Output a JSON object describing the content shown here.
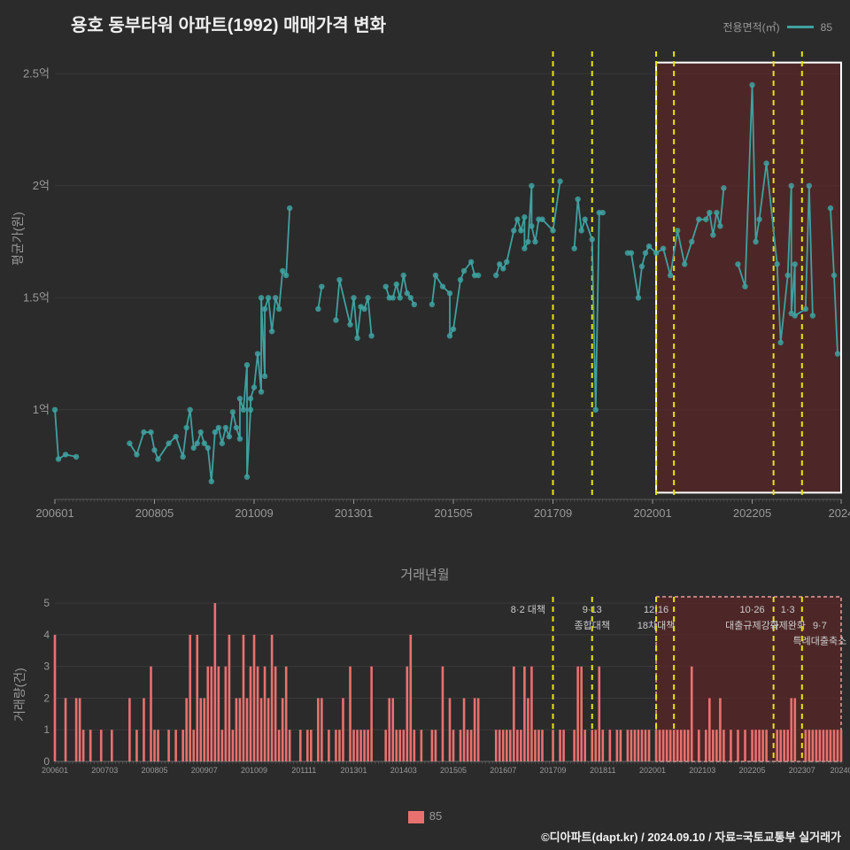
{
  "title": "용호 동부타워 아파트(1992) 매매가격 변화",
  "legend_top_label": "전용면적(㎡)",
  "legend_top_value": "85",
  "legend_bottom_value": "85",
  "footer_credit": "©디아파트(dapt.kr) / 2024.09.10 / 자료=국토교통부 실거래가",
  "x_axis_label": "거래년월",
  "y_axis_label_top": "평균가(원)",
  "y_axis_label_bottom": "거래량(건)",
  "colors": {
    "background": "#2b2b2b",
    "series_line": "#3fa1a0",
    "series_point": "#3fa1a0",
    "bar": "#e8716f",
    "highlight_fill": "#5c2626",
    "highlight_border": "#ffffff",
    "highlight_border_bottom": "#e8a0a0",
    "policy_line": "#e6e600",
    "grid": "#3a3a3a",
    "axis_text": "#999999",
    "title_text": "#eeeeee",
    "policy_text": "#cccccc"
  },
  "top_chart": {
    "type": "scatter-line",
    "x_range": [
      1,
      222
    ],
    "y_range": [
      0.6,
      2.6
    ],
    "y_ticks": [
      1.0,
      1.5,
      2.0,
      2.5
    ],
    "y_tick_labels": [
      "1억",
      "1.5억",
      "2억",
      "2.5억"
    ],
    "x_ticks": [
      1,
      29,
      57,
      85,
      113,
      141,
      169,
      197,
      222
    ],
    "x_tick_labels": [
      "200601",
      "200805",
      "201009",
      "201301",
      "201505",
      "201709",
      "202001",
      "202205",
      "2024"
    ],
    "highlight_region": {
      "x_start": 170,
      "x_end": 222,
      "y_start": 0.63,
      "y_end": 2.55
    },
    "policy_lines": [
      141,
      152,
      170,
      175,
      203,
      211
    ],
    "points": [
      [
        1,
        1.0
      ],
      [
        2,
        0.78
      ],
      [
        4,
        0.8
      ],
      [
        7,
        0.79
      ],
      [
        22,
        0.85
      ],
      [
        24,
        0.8
      ],
      [
        26,
        0.9
      ],
      [
        28,
        0.9
      ],
      [
        29,
        0.82
      ],
      [
        30,
        0.78
      ],
      [
        33,
        0.85
      ],
      [
        35,
        0.88
      ],
      [
        37,
        0.79
      ],
      [
        38,
        0.92
      ],
      [
        39,
        1.0
      ],
      [
        40,
        0.83
      ],
      [
        41,
        0.85
      ],
      [
        42,
        0.9
      ],
      [
        43,
        0.85
      ],
      [
        44,
        0.83
      ],
      [
        45,
        0.68
      ],
      [
        46,
        0.9
      ],
      [
        47,
        0.92
      ],
      [
        48,
        0.85
      ],
      [
        49,
        0.92
      ],
      [
        50,
        0.88
      ],
      [
        51,
        0.99
      ],
      [
        52,
        0.92
      ],
      [
        53,
        0.87
      ],
      [
        53,
        1.05
      ],
      [
        54,
        1.0
      ],
      [
        55,
        1.2
      ],
      [
        55,
        0.7
      ],
      [
        56,
        1.0
      ],
      [
        56,
        1.05
      ],
      [
        57,
        1.1
      ],
      [
        58,
        1.25
      ],
      [
        59,
        1.08
      ],
      [
        59,
        1.5
      ],
      [
        60,
        1.15
      ],
      [
        60,
        1.45
      ],
      [
        61,
        1.5
      ],
      [
        62,
        1.35
      ],
      [
        63,
        1.5
      ],
      [
        64,
        1.45
      ],
      [
        65,
        1.62
      ],
      [
        66,
        1.6
      ],
      [
        67,
        1.9
      ],
      [
        75,
        1.45
      ],
      [
        76,
        1.55
      ],
      [
        80,
        1.4
      ],
      [
        81,
        1.58
      ],
      [
        84,
        1.38
      ],
      [
        85,
        1.5
      ],
      [
        86,
        1.32
      ],
      [
        87,
        1.46
      ],
      [
        88,
        1.45
      ],
      [
        89,
        1.5
      ],
      [
        90,
        1.33
      ],
      [
        94,
        1.55
      ],
      [
        95,
        1.5
      ],
      [
        96,
        1.5
      ],
      [
        97,
        1.56
      ],
      [
        98,
        1.5
      ],
      [
        99,
        1.6
      ],
      [
        100,
        1.52
      ],
      [
        101,
        1.5
      ],
      [
        102,
        1.47
      ],
      [
        107,
        1.47
      ],
      [
        108,
        1.6
      ],
      [
        110,
        1.55
      ],
      [
        112,
        1.52
      ],
      [
        112,
        1.33
      ],
      [
        113,
        1.36
      ],
      [
        115,
        1.58
      ],
      [
        116,
        1.62
      ],
      [
        118,
        1.66
      ],
      [
        119,
        1.6
      ],
      [
        120,
        1.6
      ],
      [
        125,
        1.6
      ],
      [
        126,
        1.65
      ],
      [
        127,
        1.63
      ],
      [
        128,
        1.66
      ],
      [
        130,
        1.8
      ],
      [
        131,
        1.85
      ],
      [
        132,
        1.8
      ],
      [
        133,
        1.86
      ],
      [
        133,
        1.72
      ],
      [
        134,
        1.75
      ],
      [
        135,
        2.0
      ],
      [
        135,
        1.82
      ],
      [
        136,
        1.75
      ],
      [
        137,
        1.85
      ],
      [
        138,
        1.85
      ],
      [
        141,
        1.8
      ],
      [
        143,
        2.02
      ],
      [
        147,
        1.72
      ],
      [
        148,
        1.94
      ],
      [
        149,
        1.8
      ],
      [
        150,
        1.85
      ],
      [
        152,
        1.76
      ],
      [
        153,
        1.0
      ],
      [
        154,
        1.88
      ],
      [
        155,
        1.88
      ],
      [
        162,
        1.7
      ],
      [
        163,
        1.7
      ],
      [
        165,
        1.5
      ],
      [
        166,
        1.64
      ],
      [
        167,
        1.7
      ],
      [
        168,
        1.73
      ],
      [
        170,
        1.7
      ],
      [
        172,
        1.72
      ],
      [
        174,
        1.6
      ],
      [
        176,
        1.8
      ],
      [
        178,
        1.65
      ],
      [
        180,
        1.75
      ],
      [
        182,
        1.85
      ],
      [
        184,
        1.85
      ],
      [
        185,
        1.88
      ],
      [
        186,
        1.78
      ],
      [
        187,
        1.88
      ],
      [
        188,
        1.82
      ],
      [
        189,
        1.99
      ],
      [
        193,
        1.65
      ],
      [
        195,
        1.55
      ],
      [
        197,
        2.45
      ],
      [
        198,
        1.75
      ],
      [
        199,
        1.85
      ],
      [
        201,
        2.1
      ],
      [
        204,
        1.65
      ],
      [
        205,
        1.3
      ],
      [
        207,
        1.6
      ],
      [
        208,
        2.0
      ],
      [
        208,
        1.43
      ],
      [
        209,
        1.65
      ],
      [
        209,
        1.42
      ],
      [
        212,
        1.45
      ],
      [
        213,
        2.0
      ],
      [
        214,
        1.42
      ],
      [
        219,
        1.9
      ],
      [
        220,
        1.6
      ],
      [
        221,
        1.25
      ]
    ]
  },
  "bottom_chart": {
    "type": "bar",
    "x_range": [
      1,
      222
    ],
    "y_range": [
      0,
      5.2
    ],
    "y_ticks": [
      0,
      1,
      2,
      3,
      4,
      5
    ],
    "y_tick_labels": [
      "0",
      "1",
      "2",
      "3",
      "4",
      "5"
    ],
    "x_ticks": [
      1,
      15,
      29,
      43,
      57,
      71,
      85,
      99,
      113,
      127,
      141,
      155,
      169,
      183,
      197,
      211,
      222
    ],
    "x_tick_labels": [
      "200601",
      "200703",
      "200805",
      "200907",
      "201009",
      "201111",
      "201301",
      "201403",
      "201505",
      "201607",
      "201709",
      "201811",
      "202001",
      "202103",
      "202205",
      "202307",
      "20240"
    ],
    "highlight_region": {
      "x_start": 170,
      "x_end": 222,
      "y_start": 0,
      "y_end": 5.2
    },
    "policy_lines": [
      141,
      152,
      170,
      175,
      203,
      211
    ],
    "policy_labels": [
      {
        "x": 134,
        "text1": "8·2 대책"
      },
      {
        "x": 152,
        "text1": "9·13",
        "text2": "종합대책"
      },
      {
        "x": 170,
        "text1": "12·16",
        "text2": "18차대책"
      },
      {
        "x": 197,
        "text1": "10·26",
        "text2": "대출규제강화"
      },
      {
        "x": 207,
        "text1": "1·3",
        "text2": "규제완화"
      },
      {
        "x": 216,
        "text1": "",
        "text2": "9·7",
        "text3": "특례대출축소"
      }
    ],
    "bars": [
      [
        1,
        4
      ],
      [
        4,
        2
      ],
      [
        7,
        2
      ],
      [
        8,
        2
      ],
      [
        9,
        1
      ],
      [
        11,
        1
      ],
      [
        14,
        1
      ],
      [
        17,
        1
      ],
      [
        22,
        2
      ],
      [
        24,
        1
      ],
      [
        26,
        2
      ],
      [
        28,
        3
      ],
      [
        29,
        1
      ],
      [
        30,
        1
      ],
      [
        33,
        1
      ],
      [
        35,
        1
      ],
      [
        37,
        1
      ],
      [
        38,
        2
      ],
      [
        39,
        4
      ],
      [
        40,
        1
      ],
      [
        41,
        4
      ],
      [
        42,
        2
      ],
      [
        43,
        2
      ],
      [
        44,
        3
      ],
      [
        45,
        3
      ],
      [
        46,
        5
      ],
      [
        47,
        3
      ],
      [
        48,
        1
      ],
      [
        49,
        3
      ],
      [
        50,
        4
      ],
      [
        51,
        1
      ],
      [
        52,
        2
      ],
      [
        53,
        2
      ],
      [
        54,
        4
      ],
      [
        55,
        2
      ],
      [
        56,
        3
      ],
      [
        57,
        4
      ],
      [
        58,
        3
      ],
      [
        59,
        2
      ],
      [
        60,
        3
      ],
      [
        61,
        2
      ],
      [
        62,
        4
      ],
      [
        63,
        3
      ],
      [
        64,
        1
      ],
      [
        65,
        2
      ],
      [
        66,
        3
      ],
      [
        67,
        1
      ],
      [
        70,
        1
      ],
      [
        72,
        1
      ],
      [
        73,
        1
      ],
      [
        75,
        2
      ],
      [
        76,
        2
      ],
      [
        78,
        1
      ],
      [
        80,
        1
      ],
      [
        81,
        1
      ],
      [
        82,
        2
      ],
      [
        84,
        3
      ],
      [
        85,
        1
      ],
      [
        86,
        1
      ],
      [
        87,
        1
      ],
      [
        88,
        1
      ],
      [
        89,
        1
      ],
      [
        90,
        3
      ],
      [
        94,
        1
      ],
      [
        95,
        2
      ],
      [
        96,
        2
      ],
      [
        97,
        1
      ],
      [
        98,
        1
      ],
      [
        99,
        1
      ],
      [
        100,
        3
      ],
      [
        101,
        4
      ],
      [
        102,
        1
      ],
      [
        104,
        1
      ],
      [
        107,
        1
      ],
      [
        108,
        1
      ],
      [
        110,
        3
      ],
      [
        112,
        2
      ],
      [
        113,
        1
      ],
      [
        115,
        1
      ],
      [
        116,
        2
      ],
      [
        117,
        1
      ],
      [
        118,
        1
      ],
      [
        119,
        2
      ],
      [
        120,
        2
      ],
      [
        125,
        1
      ],
      [
        126,
        1
      ],
      [
        127,
        1
      ],
      [
        128,
        1
      ],
      [
        129,
        1
      ],
      [
        130,
        3
      ],
      [
        131,
        1
      ],
      [
        132,
        1
      ],
      [
        133,
        3
      ],
      [
        134,
        2
      ],
      [
        135,
        3
      ],
      [
        136,
        1
      ],
      [
        137,
        1
      ],
      [
        138,
        1
      ],
      [
        141,
        1
      ],
      [
        143,
        1
      ],
      [
        144,
        1
      ],
      [
        147,
        1
      ],
      [
        148,
        3
      ],
      [
        149,
        3
      ],
      [
        150,
        1
      ],
      [
        152,
        1
      ],
      [
        153,
        1
      ],
      [
        154,
        3
      ],
      [
        155,
        1
      ],
      [
        157,
        1
      ],
      [
        159,
        1
      ],
      [
        160,
        1
      ],
      [
        162,
        1
      ],
      [
        163,
        1
      ],
      [
        164,
        1
      ],
      [
        165,
        1
      ],
      [
        166,
        1
      ],
      [
        167,
        1
      ],
      [
        168,
        1
      ],
      [
        170,
        1
      ],
      [
        171,
        1
      ],
      [
        172,
        1
      ],
      [
        173,
        1
      ],
      [
        174,
        1
      ],
      [
        175,
        1
      ],
      [
        176,
        1
      ],
      [
        177,
        1
      ],
      [
        178,
        1
      ],
      [
        179,
        1
      ],
      [
        180,
        3
      ],
      [
        182,
        1
      ],
      [
        184,
        1
      ],
      [
        185,
        2
      ],
      [
        186,
        1
      ],
      [
        187,
        1
      ],
      [
        188,
        2
      ],
      [
        189,
        1
      ],
      [
        191,
        1
      ],
      [
        193,
        1
      ],
      [
        195,
        1
      ],
      [
        197,
        1
      ],
      [
        198,
        1
      ],
      [
        199,
        1
      ],
      [
        200,
        1
      ],
      [
        201,
        1
      ],
      [
        204,
        1
      ],
      [
        205,
        1
      ],
      [
        206,
        1
      ],
      [
        207,
        1
      ],
      [
        208,
        2
      ],
      [
        209,
        2
      ],
      [
        212,
        1
      ],
      [
        213,
        1
      ],
      [
        214,
        1
      ],
      [
        215,
        1
      ],
      [
        216,
        1
      ],
      [
        217,
        1
      ],
      [
        218,
        1
      ],
      [
        219,
        1
      ],
      [
        220,
        1
      ],
      [
        221,
        1
      ],
      [
        222,
        1
      ]
    ]
  }
}
